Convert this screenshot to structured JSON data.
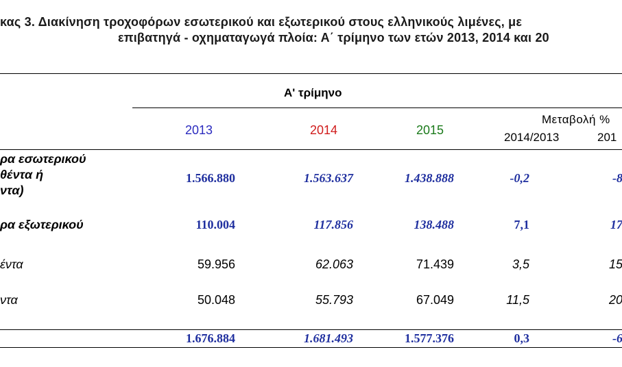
{
  "title": {
    "line1": "κας 3. Διακίνηση τροχοφόρων εσωτερικού και εξωτερικού στους ελληνικούς λιμένες, με",
    "line2": "επιβατηγά - οχηματαγωγά πλοία: Α΄ τρίμηνο των ετών  2013, 2014 και 20"
  },
  "header": {
    "period": "Α' τρίμηνο",
    "years": [
      "2013",
      "2014",
      "2015"
    ],
    "change_title": "Μεταβολή %",
    "change_cols": [
      "2014/2013",
      "201"
    ]
  },
  "colors": {
    "y2013": "#2b2bbf",
    "y2014": "#d01c1c",
    "y2015": "#1b7a1b",
    "bold_values": "#1f2f9f"
  },
  "rows": [
    {
      "label_lines": [
        "ρα εσωτερικού",
        "θέντα ή",
        "ντα)"
      ],
      "values": [
        "1.566.880",
        "1.563.637",
        "1.438.888",
        "-0,2",
        "-8"
      ]
    },
    {
      "label_lines": [
        "ρα εξωτερικού"
      ],
      "values": [
        "110.004",
        "117.856",
        "138.488",
        "7,1",
        "17"
      ]
    },
    {
      "label_lines": [
        "έντα"
      ],
      "values": [
        "59.956",
        "62.063",
        "71.439",
        "3,5",
        "15"
      ]
    },
    {
      "label_lines": [
        "ντα"
      ],
      "values": [
        "50.048",
        "55.793",
        "67.049",
        "11,5",
        "20"
      ]
    },
    {
      "label_lines": [],
      "values": [
        "1.676.884",
        "1.681.493",
        "1.577.376",
        "0,3",
        "-6"
      ]
    }
  ]
}
